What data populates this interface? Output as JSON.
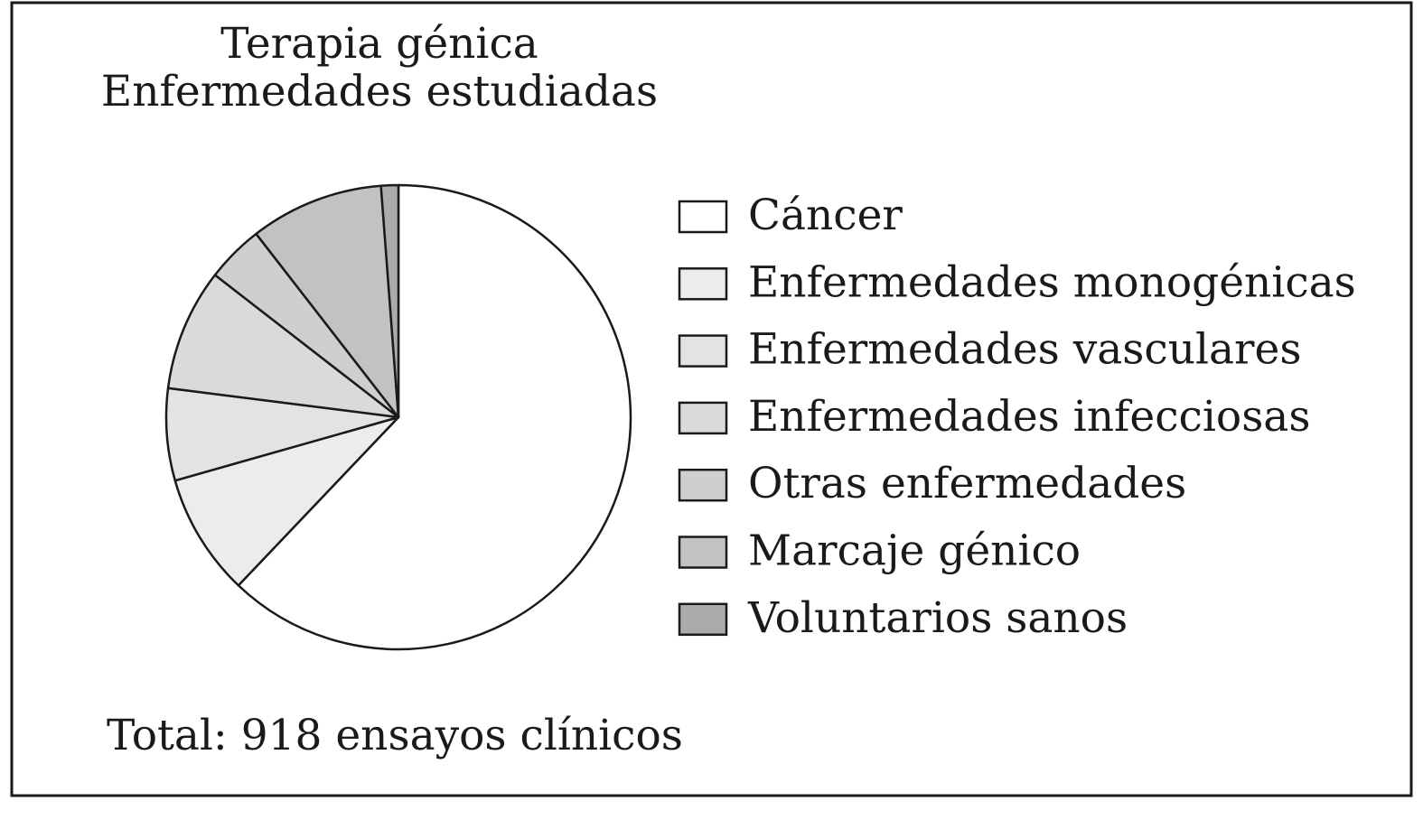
{
  "chart_data": {
    "type": "pie",
    "title": "Terapia génica",
    "subtitle": "Enfermedades estudiadas",
    "annotation": "Total: 918 ensayos clínicos",
    "categories": [
      "Cáncer",
      "Enfermedades monogénicas",
      "Enfermedades vasculares",
      "Enfermedades infecciosas",
      "Otras enfermedades",
      "Marcaje génico",
      "Voluntarios sanos"
    ],
    "values": [
      62.1,
      8.5,
      6.4,
      8.5,
      4.0,
      9.3,
      1.2
    ],
    "colors": [
      "#ffffff",
      "#ececee",
      "#e3e3e5",
      "#dadadc",
      "#cfcfd1",
      "#c2c2c4",
      "#ababad"
    ],
    "legend": "right"
  }
}
